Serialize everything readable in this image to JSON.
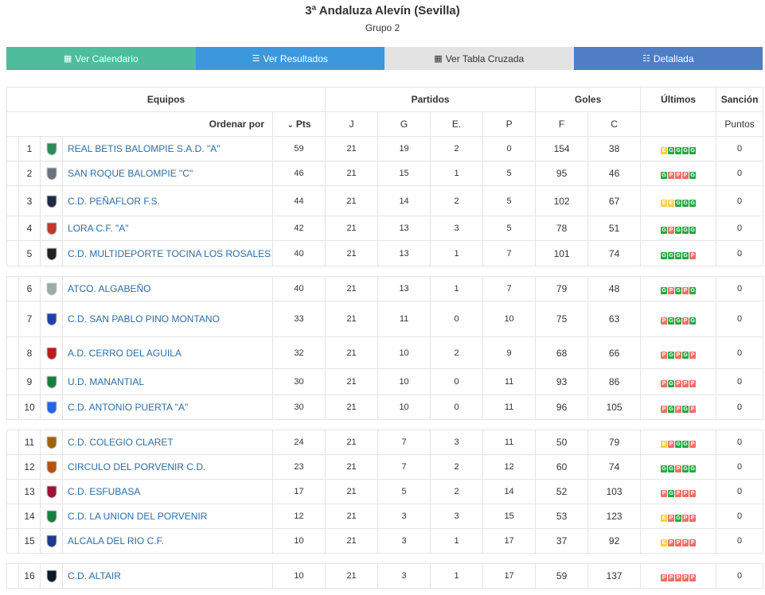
{
  "header": {
    "title": "3ª Andaluza Alevín (Sevilla)",
    "subtitle": "Grupo 2"
  },
  "buttons": {
    "calendar": "Ver Calendario",
    "results": "Ver Resultados",
    "cross": "Ver Tabla Cruzada",
    "detailed": "Detallada"
  },
  "table": {
    "group_headers": {
      "teams": "Equipos",
      "matches": "Partidos",
      "goals": "Goles",
      "last": "Últimos",
      "sanction": "Sanción"
    },
    "sub_headers": {
      "order_by": "Ordenar por",
      "pts": "Pts",
      "j": "J",
      "g": "G",
      "e": "E.",
      "p": "P",
      "f": "F",
      "c": "C",
      "points": "Puntos"
    },
    "colors": {
      "win": "#28a745",
      "draw": "#f4d03f",
      "loss": "#ec7069",
      "link": "#2e6da4"
    },
    "rows": [
      {
        "pos": "1",
        "team": "REAL BETIS BALOMPIE S.A.D. \"A\"",
        "pts": "59",
        "j": "21",
        "g": "19",
        "e": "2",
        "p": "0",
        "f": "154",
        "c": "38",
        "form": [
          "E",
          "G",
          "G",
          "G",
          "G"
        ],
        "sanction": "0"
      },
      {
        "pos": "2",
        "team": "SAN ROQUE BALOMPIE \"C\"",
        "pts": "46",
        "j": "21",
        "g": "15",
        "e": "1",
        "p": "5",
        "f": "95",
        "c": "46",
        "form": [
          "G",
          "P",
          "P",
          "P",
          "G"
        ],
        "sanction": "0"
      },
      {
        "pos": "3",
        "team": "C.D. PEÑAFLOR F.S.",
        "pts": "44",
        "j": "21",
        "g": "14",
        "e": "2",
        "p": "5",
        "f": "102",
        "c": "67",
        "form": [
          "E",
          "E",
          "G",
          "G",
          "G"
        ],
        "sanction": "0"
      },
      {
        "pos": "4",
        "team": "LORA C.F. \"A\"",
        "pts": "42",
        "j": "21",
        "g": "13",
        "e": "3",
        "p": "5",
        "f": "78",
        "c": "51",
        "form": [
          "G",
          "P",
          "G",
          "G",
          "G"
        ],
        "sanction": "0"
      },
      {
        "pos": "5",
        "team": "C.D. MULTIDEPORTE TOCINA LOS ROSALES",
        "pts": "40",
        "j": "21",
        "g": "13",
        "e": "1",
        "p": "7",
        "f": "101",
        "c": "74",
        "form": [
          "G",
          "G",
          "G",
          "G",
          "P"
        ],
        "sanction": "0"
      },
      {
        "pos": "6",
        "team": "ATCO. ALGABEÑO",
        "pts": "40",
        "j": "21",
        "g": "13",
        "e": "1",
        "p": "7",
        "f": "79",
        "c": "48",
        "form": [
          "G",
          "P",
          "G",
          "P",
          "G"
        ],
        "sanction": "0"
      },
      {
        "pos": "7",
        "team": "C.D. SAN PABLO PINO MONTANO",
        "pts": "33",
        "j": "21",
        "g": "11",
        "e": "0",
        "p": "10",
        "f": "75",
        "c": "63",
        "form": [
          "P",
          "G",
          "G",
          "P",
          "G"
        ],
        "sanction": "0"
      },
      {
        "pos": "8",
        "team": "A.D. CERRO DEL AGUILA",
        "pts": "32",
        "j": "21",
        "g": "10",
        "e": "2",
        "p": "9",
        "f": "68",
        "c": "66",
        "form": [
          "P",
          "G",
          "P",
          "G",
          "P"
        ],
        "sanction": "0"
      },
      {
        "pos": "9",
        "team": "U.D. MANANTIAL",
        "pts": "30",
        "j": "21",
        "g": "10",
        "e": "0",
        "p": "11",
        "f": "93",
        "c": "86",
        "form": [
          "P",
          "G",
          "P",
          "P",
          "P"
        ],
        "sanction": "0"
      },
      {
        "pos": "10",
        "team": "C.D. ANTONIO PUERTA \"A\"",
        "pts": "30",
        "j": "21",
        "g": "10",
        "e": "0",
        "p": "11",
        "f": "96",
        "c": "105",
        "form": [
          "P",
          "G",
          "P",
          "G",
          "P"
        ],
        "sanction": "0"
      },
      {
        "pos": "11",
        "team": "C.D. COLEGIO CLARET",
        "pts": "24",
        "j": "21",
        "g": "7",
        "e": "3",
        "p": "11",
        "f": "50",
        "c": "79",
        "form": [
          "E",
          "P",
          "G",
          "G",
          "P"
        ],
        "sanction": "0"
      },
      {
        "pos": "12",
        "team": "CIRCULO DEL PORVENIR C.D.",
        "pts": "23",
        "j": "21",
        "g": "7",
        "e": "2",
        "p": "12",
        "f": "60",
        "c": "74",
        "form": [
          "G",
          "G",
          "P",
          "G",
          "G"
        ],
        "sanction": "0"
      },
      {
        "pos": "13",
        "team": "C.D. ESFUBASA",
        "pts": "17",
        "j": "21",
        "g": "5",
        "e": "2",
        "p": "14",
        "f": "52",
        "c": "103",
        "form": [
          "P",
          "G",
          "P",
          "P",
          "P"
        ],
        "sanction": "0"
      },
      {
        "pos": "14",
        "team": "C.D. LA UNION DEL PORVENIR",
        "pts": "12",
        "j": "21",
        "g": "3",
        "e": "3",
        "p": "15",
        "f": "53",
        "c": "123",
        "form": [
          "E",
          "P",
          "G",
          "P",
          "P"
        ],
        "sanction": "0"
      },
      {
        "pos": "15",
        "team": "ALCALA DEL RIO C.F.",
        "pts": "10",
        "j": "21",
        "g": "3",
        "e": "1",
        "p": "17",
        "f": "37",
        "c": "92",
        "form": [
          "E",
          "P",
          "P",
          "P",
          "P"
        ],
        "sanction": "0"
      },
      {
        "pos": "16",
        "team": "C.D. ALTAIR",
        "pts": "10",
        "j": "21",
        "g": "3",
        "e": "1",
        "p": "17",
        "f": "59",
        "c": "137",
        "form": [
          "P",
          "P",
          "P",
          "P",
          "P"
        ],
        "sanction": "0"
      }
    ]
  }
}
